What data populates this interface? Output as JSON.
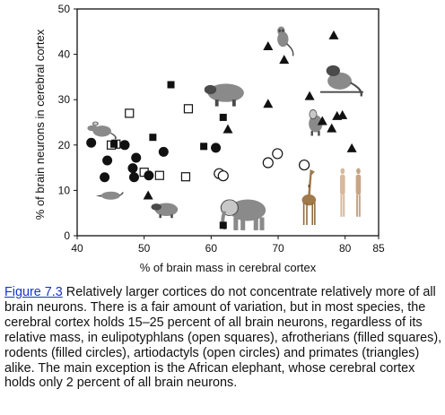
{
  "chart_data": {
    "type": "scatter",
    "xlabel": "% of brain mass in cerebral cortex",
    "ylabel": "% of brain neurons in cerebral cortex",
    "xlim": [
      40,
      85
    ],
    "ylim": [
      0,
      50
    ],
    "xticks": [
      40,
      50,
      60,
      70,
      80,
      85
    ],
    "yticks": [
      0,
      10,
      20,
      30,
      40,
      50
    ],
    "grid": false,
    "series": [
      {
        "marker": "open-square",
        "points": [
          {
            "x": 45.8,
            "y": 20.2
          },
          {
            "x": 45.1,
            "y": 20.0
          },
          {
            "x": 47.8,
            "y": 27.0
          },
          {
            "x": 50.0,
            "y": 14.0
          },
          {
            "x": 52.3,
            "y": 13.3
          },
          {
            "x": 56.2,
            "y": 13.0
          },
          {
            "x": 56.6,
            "y": 28.0
          }
        ]
      },
      {
        "marker": "filled-square",
        "points": [
          {
            "x": 45.5,
            "y": 20.2
          },
          {
            "x": 51.3,
            "y": 21.7
          },
          {
            "x": 54.0,
            "y": 33.3
          },
          {
            "x": 58.9,
            "y": 19.7
          },
          {
            "x": 61.8,
            "y": 26.1
          },
          {
            "x": 61.8,
            "y": 2.3
          }
        ]
      },
      {
        "marker": "filled-circle",
        "points": [
          {
            "x": 42.1,
            "y": 20.5
          },
          {
            "x": 44.5,
            "y": 16.6
          },
          {
            "x": 44.1,
            "y": 12.9
          },
          {
            "x": 47.1,
            "y": 20.0
          },
          {
            "x": 48.3,
            "y": 14.9
          },
          {
            "x": 48.5,
            "y": 12.9
          },
          {
            "x": 48.8,
            "y": 17.2
          },
          {
            "x": 50.7,
            "y": 13.3
          },
          {
            "x": 52.9,
            "y": 18.5
          },
          {
            "x": 60.7,
            "y": 19.4
          }
        ]
      },
      {
        "marker": "open-circle",
        "points": [
          {
            "x": 61.2,
            "y": 13.7
          },
          {
            "x": 61.8,
            "y": 13.2
          },
          {
            "x": 68.5,
            "y": 16.1
          },
          {
            "x": 69.9,
            "y": 18.1
          },
          {
            "x": 73.9,
            "y": 15.6
          }
        ]
      },
      {
        "marker": "triangle",
        "points": [
          {
            "x": 50.6,
            "y": 8.8
          },
          {
            "x": 62.5,
            "y": 23.4
          },
          {
            "x": 68.5,
            "y": 41.7
          },
          {
            "x": 68.5,
            "y": 29.0
          },
          {
            "x": 70.9,
            "y": 38.7
          },
          {
            "x": 74.7,
            "y": 30.7
          },
          {
            "x": 76.6,
            "y": 25.2
          },
          {
            "x": 78.0,
            "y": 23.6
          },
          {
            "x": 78.3,
            "y": 44.1
          },
          {
            "x": 78.8,
            "y": 26.3
          },
          {
            "x": 79.6,
            "y": 26.5
          },
          {
            "x": 81.0,
            "y": 19.2
          }
        ]
      }
    ],
    "illustrations": [
      {
        "icon": "rat-icon",
        "x": 43.5,
        "y": 23.5,
        "w": 32,
        "h": 22
      },
      {
        "icon": "shrew-icon",
        "x": 44.8,
        "y": 9.0,
        "w": 30,
        "h": 15
      },
      {
        "icon": "hyrax-icon",
        "x": 53.1,
        "y": 6.0,
        "w": 32,
        "h": 22
      },
      {
        "icon": "capybara-icon",
        "x": 62.2,
        "y": 31.5,
        "w": 48,
        "h": 30
      },
      {
        "icon": "elephant-icon",
        "x": 65.0,
        "y": 5.0,
        "w": 56,
        "h": 40
      },
      {
        "icon": "tarsier-icon",
        "x": 70.9,
        "y": 43.0,
        "w": 28,
        "h": 34
      },
      {
        "icon": "monkey-icon",
        "x": 79.5,
        "y": 34.5,
        "w": 48,
        "h": 38
      },
      {
        "icon": "macaque-icon",
        "x": 75.6,
        "y": 25.0,
        "w": 24,
        "h": 30
      },
      {
        "icon": "giraffe-icon",
        "x": 74.6,
        "y": 8.5,
        "w": 26,
        "h": 62
      },
      {
        "icon": "humans-icon",
        "x": 80.8,
        "y": 9.5,
        "w": 40,
        "h": 56
      }
    ]
  },
  "caption": {
    "link": "Figure 7.3",
    "text": " Relatively larger cortices do not concentrate relatively more of all brain neurons. There is a fair amount of variation, but in most species, the cerebral cortex holds 15–25 percent of all brain neurons, regardless of its relative mass, in eulipotyphlans (open squares), afrotherians (filled squares), rodents (filled circles), artiodactyls (open circles) and primates (triangles) alike. The main exception is the African elephant, whose cerebral cortex holds only 2 percent of all brain neurons."
  }
}
